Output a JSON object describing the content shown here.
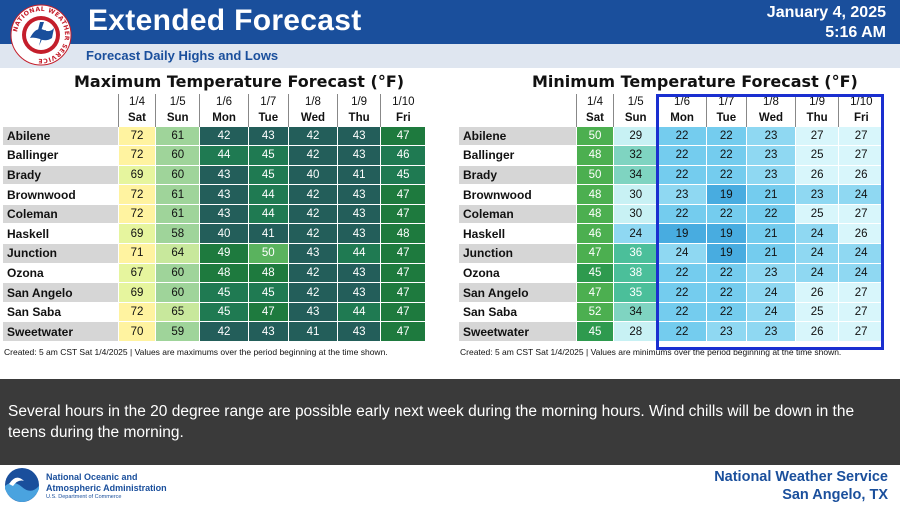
{
  "header": {
    "title": "Extended Forecast",
    "date": "January 4, 2025",
    "time": "5:16 AM",
    "subtitle": "Forecast Daily Highs and Lows",
    "logo_text": "NATIONAL WEATHER SERVICE",
    "brand_color": "#1a4f9c"
  },
  "days": [
    {
      "date": "1/4",
      "dow": "Sat"
    },
    {
      "date": "1/5",
      "dow": "Sun"
    },
    {
      "date": "1/6",
      "dow": "Mon"
    },
    {
      "date": "1/7",
      "dow": "Tue"
    },
    {
      "date": "1/8",
      "dow": "Wed"
    },
    {
      "date": "1/9",
      "dow": "Thu"
    },
    {
      "date": "1/10",
      "dow": "Fri"
    }
  ],
  "max_table": {
    "title": "Maximum Temperature Forecast (°F)",
    "footnote": "Created: 5 am CST Sat 1/4/2025  |  Values are maximums over the period beginning at the time shown.",
    "rows": [
      {
        "city": "Abilene",
        "values": [
          72,
          61,
          42,
          43,
          42,
          43,
          47
        ]
      },
      {
        "city": "Ballinger",
        "values": [
          72,
          60,
          44,
          45,
          42,
          43,
          46
        ]
      },
      {
        "city": "Brady",
        "values": [
          69,
          60,
          43,
          45,
          40,
          41,
          45
        ]
      },
      {
        "city": "Brownwood",
        "values": [
          72,
          61,
          43,
          44,
          42,
          43,
          47
        ]
      },
      {
        "city": "Coleman",
        "values": [
          72,
          61,
          43,
          44,
          42,
          43,
          47
        ]
      },
      {
        "city": "Haskell",
        "values": [
          69,
          58,
          40,
          41,
          42,
          43,
          48
        ]
      },
      {
        "city": "Junction",
        "values": [
          71,
          64,
          49,
          50,
          43,
          44,
          47
        ]
      },
      {
        "city": "Ozona",
        "values": [
          67,
          60,
          48,
          48,
          42,
          43,
          47
        ]
      },
      {
        "city": "San Angelo",
        "values": [
          69,
          60,
          45,
          45,
          42,
          43,
          47
        ]
      },
      {
        "city": "San Saba",
        "values": [
          72,
          65,
          45,
          47,
          43,
          44,
          47
        ]
      },
      {
        "city": "Sweetwater",
        "values": [
          70,
          59,
          42,
          43,
          41,
          43,
          47
        ]
      }
    ]
  },
  "min_table": {
    "title": "Minimum Temperature Forecast (°F)",
    "footnote": "Created: 5 am CST Sat 1/4/2025  |  Values are minimums over the period beginning at the time shown.",
    "rows": [
      {
        "city": "Abilene",
        "values": [
          50,
          29,
          22,
          22,
          23,
          27,
          27
        ]
      },
      {
        "city": "Ballinger",
        "values": [
          48,
          32,
          22,
          22,
          23,
          25,
          27
        ]
      },
      {
        "city": "Brady",
        "values": [
          50,
          34,
          22,
          22,
          23,
          26,
          26
        ]
      },
      {
        "city": "Brownwood",
        "values": [
          48,
          30,
          23,
          19,
          21,
          23,
          24
        ]
      },
      {
        "city": "Coleman",
        "values": [
          48,
          30,
          22,
          22,
          22,
          25,
          27
        ]
      },
      {
        "city": "Haskell",
        "values": [
          46,
          24,
          19,
          19,
          21,
          24,
          26
        ]
      },
      {
        "city": "Junction",
        "values": [
          47,
          36,
          24,
          19,
          21,
          24,
          24
        ]
      },
      {
        "city": "Ozona",
        "values": [
          45,
          38,
          22,
          22,
          23,
          24,
          24
        ]
      },
      {
        "city": "San Angelo",
        "values": [
          47,
          35,
          22,
          22,
          24,
          26,
          27
        ]
      },
      {
        "city": "San Saba",
        "values": [
          52,
          34,
          22,
          22,
          24,
          25,
          27
        ]
      },
      {
        "city": "Sweetwater",
        "values": [
          45,
          28,
          22,
          23,
          23,
          26,
          27
        ]
      }
    ]
  },
  "discussion": "Several hours in the 20 degree range are possible early next week during the morning hours. Wind chills will be down in the teens during the morning.",
  "footer": {
    "noaa_name_line1": "National Oceanic and",
    "noaa_name_line2": "Atmospheric Administration",
    "noaa_dept": "U.S. Department of Commerce",
    "office_line1": "National Weather Service",
    "office_line2": "San Angelo, TX"
  }
}
